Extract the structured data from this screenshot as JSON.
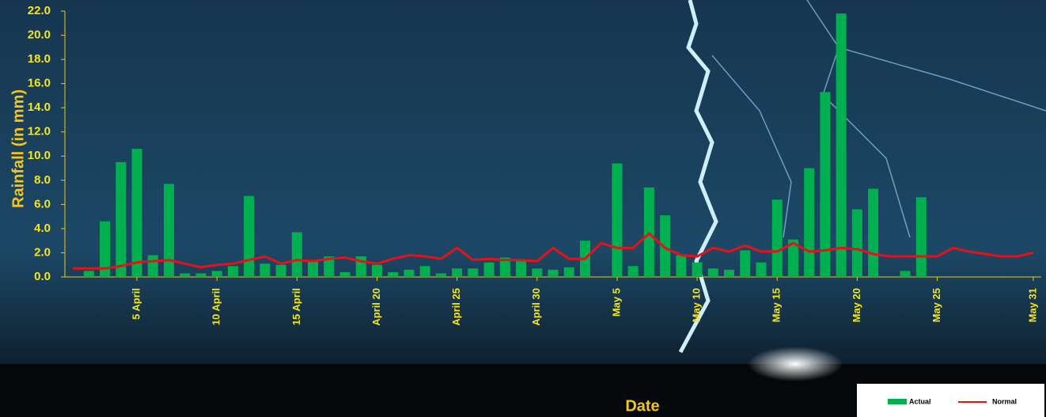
{
  "chart_data": {
    "type": "bar",
    "x_label": "Date",
    "y_label": "Rainfall (in mm)",
    "categories": [
      null,
      null,
      null,
      null,
      "5 April",
      null,
      null,
      null,
      null,
      "10 April",
      null,
      null,
      null,
      null,
      "15 April",
      null,
      null,
      null,
      null,
      "April 20",
      null,
      null,
      null,
      null,
      "April 25",
      null,
      null,
      null,
      null,
      "April 30",
      null,
      null,
      null,
      null,
      "May 5",
      null,
      null,
      null,
      null,
      "May 10",
      null,
      null,
      null,
      null,
      "May 15",
      null,
      null,
      null,
      null,
      "May 20",
      null,
      null,
      null,
      null,
      "May 25",
      null,
      null,
      null,
      null,
      null,
      "May 31"
    ],
    "series": [
      {
        "name": "Actual",
        "type": "bar",
        "color": "#00b050",
        "values": [
          0,
          0.5,
          4.6,
          9.5,
          10.6,
          1.8,
          7.7,
          0.3,
          0.3,
          0.5,
          0.9,
          6.7,
          1.1,
          1.0,
          3.7,
          1.4,
          1.7,
          0.4,
          1.7,
          1.0,
          0.4,
          0.6,
          0.9,
          0.3,
          0.7,
          0.7,
          1.2,
          1.6,
          1.3,
          0.7,
          0.6,
          0.8,
          3.0,
          0,
          9.4,
          0.9,
          7.4,
          5.1,
          1.8,
          1.2,
          0.7,
          0.6,
          2.2,
          1.2,
          6.4,
          3.1,
          9.0,
          15.3,
          21.8,
          5.6,
          7.3,
          0,
          0.5,
          6.6,
          0,
          0,
          0,
          0,
          0,
          0,
          0
        ]
      },
      {
        "name": "Normal",
        "type": "line",
        "color": "#e8101a",
        "values": [
          0.7,
          0.7,
          0.7,
          0.9,
          1.2,
          1.3,
          1.4,
          1.1,
          0.8,
          1.0,
          1.1,
          1.4,
          1.7,
          1.1,
          1.4,
          1.3,
          1.5,
          1.6,
          1.3,
          1.1,
          1.5,
          1.8,
          1.7,
          1.5,
          2.4,
          1.4,
          1.5,
          1.4,
          1.4,
          1.3,
          2.4,
          1.5,
          1.5,
          2.8,
          2.4,
          2.4,
          3.6,
          2.4,
          1.8,
          1.7,
          2.4,
          2.1,
          2.6,
          2.1,
          2.1,
          2.8,
          2.1,
          2.2,
          2.4,
          2.3,
          1.9,
          1.7,
          1.7,
          1.7,
          1.7,
          2.4,
          2.1,
          1.9,
          1.7,
          1.7,
          2.0
        ]
      }
    ],
    "ylim": [
      0,
      22
    ],
    "yticks": [
      {
        "value": 0,
        "label": "0.0"
      },
      {
        "value": 2,
        "label": "2.0"
      },
      {
        "value": 4,
        "label": "4.0"
      },
      {
        "value": 6,
        "label": "6.0"
      },
      {
        "value": 8,
        "label": "8.0"
      },
      {
        "value": 10,
        "label": "10.0"
      },
      {
        "value": 12,
        "label": "12.0"
      },
      {
        "value": 14,
        "label": "14.0"
      },
      {
        "value": 16,
        "label": "16.0"
      },
      {
        "value": 18,
        "label": "18.0"
      },
      {
        "value": 20,
        "label": "20.0"
      },
      {
        "value": 22,
        "label": "22.0"
      }
    ],
    "grid": false,
    "legend_position": "bottom-right"
  }
}
